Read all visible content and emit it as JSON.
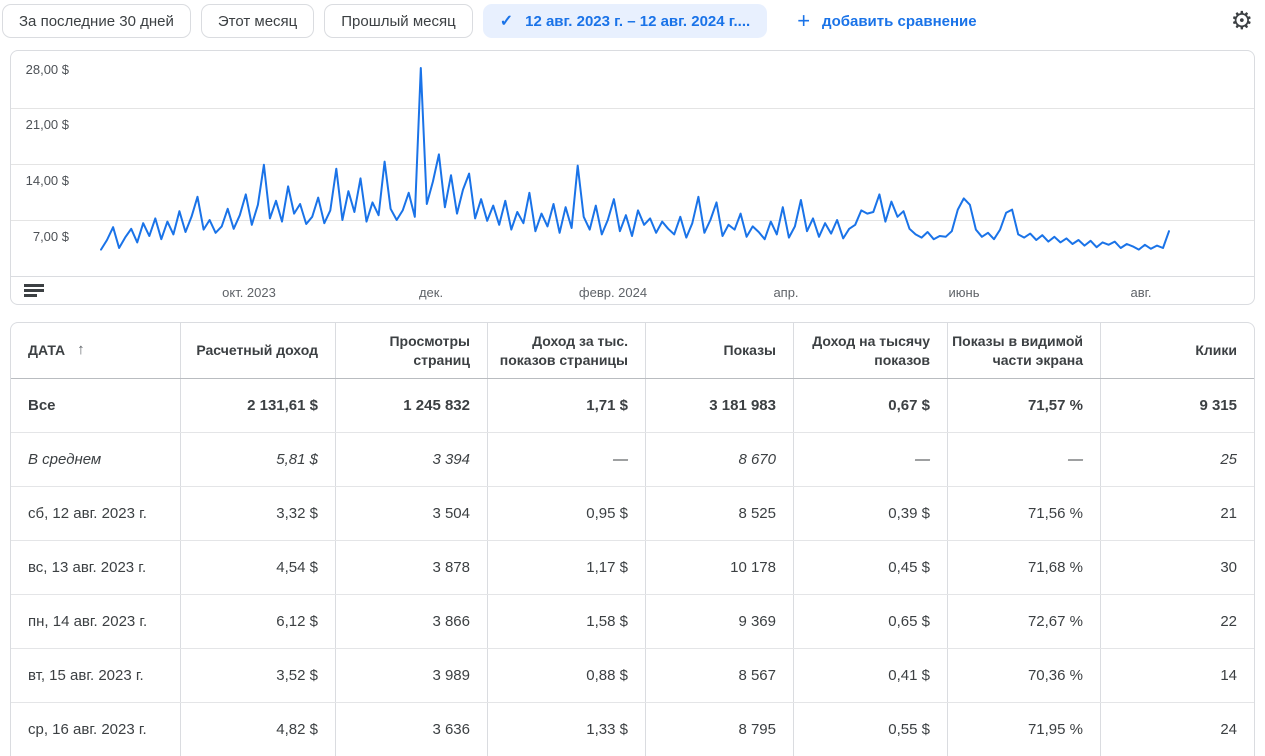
{
  "toolbar": {
    "quick_ranges": [
      "За последние 30 дней",
      "Этот месяц",
      "Прошлый месяц"
    ],
    "selected_range": "12 авг. 2023 г. – 12 авг. 2024 г....",
    "check_icon": "✓",
    "add_comparison_label": "добавить сравнение",
    "plus_icon": "+",
    "gear_icon": "⚙",
    "accent_color": "#1a73e8",
    "selected_chip_bg": "#e8f0fe"
  },
  "chart": {
    "y_ticks": [
      "28,00 $",
      "21,00 $",
      "14,00 $",
      "7,00 $"
    ],
    "x_ticks": [
      "окт. 2023",
      "дек.",
      "февр. 2024",
      "апр.",
      "июнь",
      "авг."
    ],
    "line_color": "#1a73e8"
  },
  "chart_data": {
    "type": "line",
    "series_name": "Расчетный доход",
    "x_range": [
      "12 авг. 2023 г.",
      "12 авг. 2024 г."
    ],
    "x_tick_labels": [
      "окт. 2023",
      "дек.",
      "февр. 2024",
      "апр.",
      "июнь",
      "авг."
    ],
    "y_tick_labels": [
      "7,00 $",
      "14,00 $",
      "21,00 $",
      "28,00 $"
    ],
    "ylim": [
      0,
      28
    ],
    "unit": "$",
    "grid": true,
    "legend_position": "none",
    "values_note": "daily revenue, estimated from pixels, ~2-day sampling",
    "values": [
      3.3,
      4.5,
      6.1,
      3.5,
      4.8,
      5.9,
      4.2,
      6.6,
      5.0,
      7.2,
      4.6,
      6.8,
      5.2,
      8.1,
      5.5,
      7.4,
      9.9,
      5.8,
      7.0,
      5.4,
      6.2,
      8.4,
      5.9,
      7.6,
      10.2,
      6.4,
      8.9,
      13.9,
      7.2,
      9.4,
      6.8,
      11.2,
      7.8,
      9.0,
      6.5,
      7.4,
      9.8,
      6.6,
      8.2,
      13.4,
      7.0,
      10.6,
      8.0,
      12.2,
      6.8,
      9.2,
      7.6,
      14.3,
      8.4,
      7.0,
      8.2,
      10.4,
      7.4,
      26.0,
      9.0,
      11.8,
      15.2,
      8.6,
      12.6,
      7.8,
      10.8,
      12.8,
      7.2,
      9.6,
      6.9,
      8.8,
      6.4,
      9.4,
      5.8,
      8.0,
      6.6,
      10.4,
      5.6,
      7.8,
      6.2,
      9.0,
      5.4,
      8.6,
      6.0,
      13.8,
      7.4,
      5.8,
      8.8,
      5.2,
      7.0,
      9.6,
      5.6,
      7.6,
      5.0,
      8.2,
      6.4,
      7.2,
      5.4,
      6.8,
      5.9,
      5.2,
      7.4,
      4.8,
      6.6,
      9.9,
      5.4,
      7.0,
      9.2,
      5.0,
      6.4,
      5.8,
      7.8,
      4.9,
      6.2,
      5.5,
      4.6,
      6.8,
      5.2,
      8.6,
      4.8,
      6.2,
      9.5,
      5.6,
      7.2,
      4.9,
      6.6,
      5.3,
      7.0,
      4.7,
      5.9,
      6.4,
      8.2,
      7.8,
      8.0,
      10.2,
      6.8,
      9.3,
      7.4,
      8.1,
      5.9,
      5.2,
      4.8,
      5.5,
      4.6,
      5.0,
      4.9,
      5.6,
      8.3,
      9.7,
      8.9,
      5.8,
      4.9,
      5.4,
      4.6,
      5.8,
      7.9,
      8.3,
      5.2,
      4.8,
      5.3,
      4.5,
      5.1,
      4.3,
      4.9,
      4.2,
      4.7,
      4.0,
      4.5,
      3.8,
      4.4,
      3.6,
      4.2,
      3.9,
      4.3,
      3.5,
      4.0,
      3.7,
      3.3,
      3.9,
      3.4,
      3.8,
      3.5,
      5.6
    ]
  },
  "table": {
    "columns": [
      "ДАТА",
      "Расчетный доход",
      "Просмотры страниц",
      "Доход за тыс. показов страницы",
      "Показы",
      "Доход на тысячу показов",
      "Показы в видимой части экрана",
      "Клики"
    ],
    "sort_icon": "↑",
    "rows": [
      {
        "label": "Все",
        "style": "total",
        "values": [
          "2 131,61 $",
          "1 245 832",
          "1,71 $",
          "3 181 983",
          "0,67 $",
          "71,57 %",
          "9 315"
        ]
      },
      {
        "label": "В среднем",
        "style": "average",
        "values": [
          "5,81 $",
          "3 394",
          "—",
          "8 670",
          "—",
          "—",
          "25"
        ]
      },
      {
        "label": "сб, 12 авг. 2023 г.",
        "style": "",
        "values": [
          "3,32 $",
          "3 504",
          "0,95 $",
          "8 525",
          "0,39 $",
          "71,56 %",
          "21"
        ]
      },
      {
        "label": "вс, 13 авг. 2023 г.",
        "style": "",
        "values": [
          "4,54 $",
          "3 878",
          "1,17 $",
          "10 178",
          "0,45 $",
          "71,68 %",
          "30"
        ]
      },
      {
        "label": "пн, 14 авг. 2023 г.",
        "style": "",
        "values": [
          "6,12 $",
          "3 866",
          "1,58 $",
          "9 369",
          "0,65 $",
          "72,67 %",
          "22"
        ]
      },
      {
        "label": "вт, 15 авг. 2023 г.",
        "style": "",
        "values": [
          "3,52 $",
          "3 989",
          "0,88 $",
          "8 567",
          "0,41 $",
          "70,36 %",
          "14"
        ]
      },
      {
        "label": "ср, 16 авг. 2023 г.",
        "style": "",
        "values": [
          "4,82 $",
          "3 636",
          "1,33 $",
          "8 795",
          "0,55 $",
          "71,95 %",
          "24"
        ]
      }
    ]
  }
}
